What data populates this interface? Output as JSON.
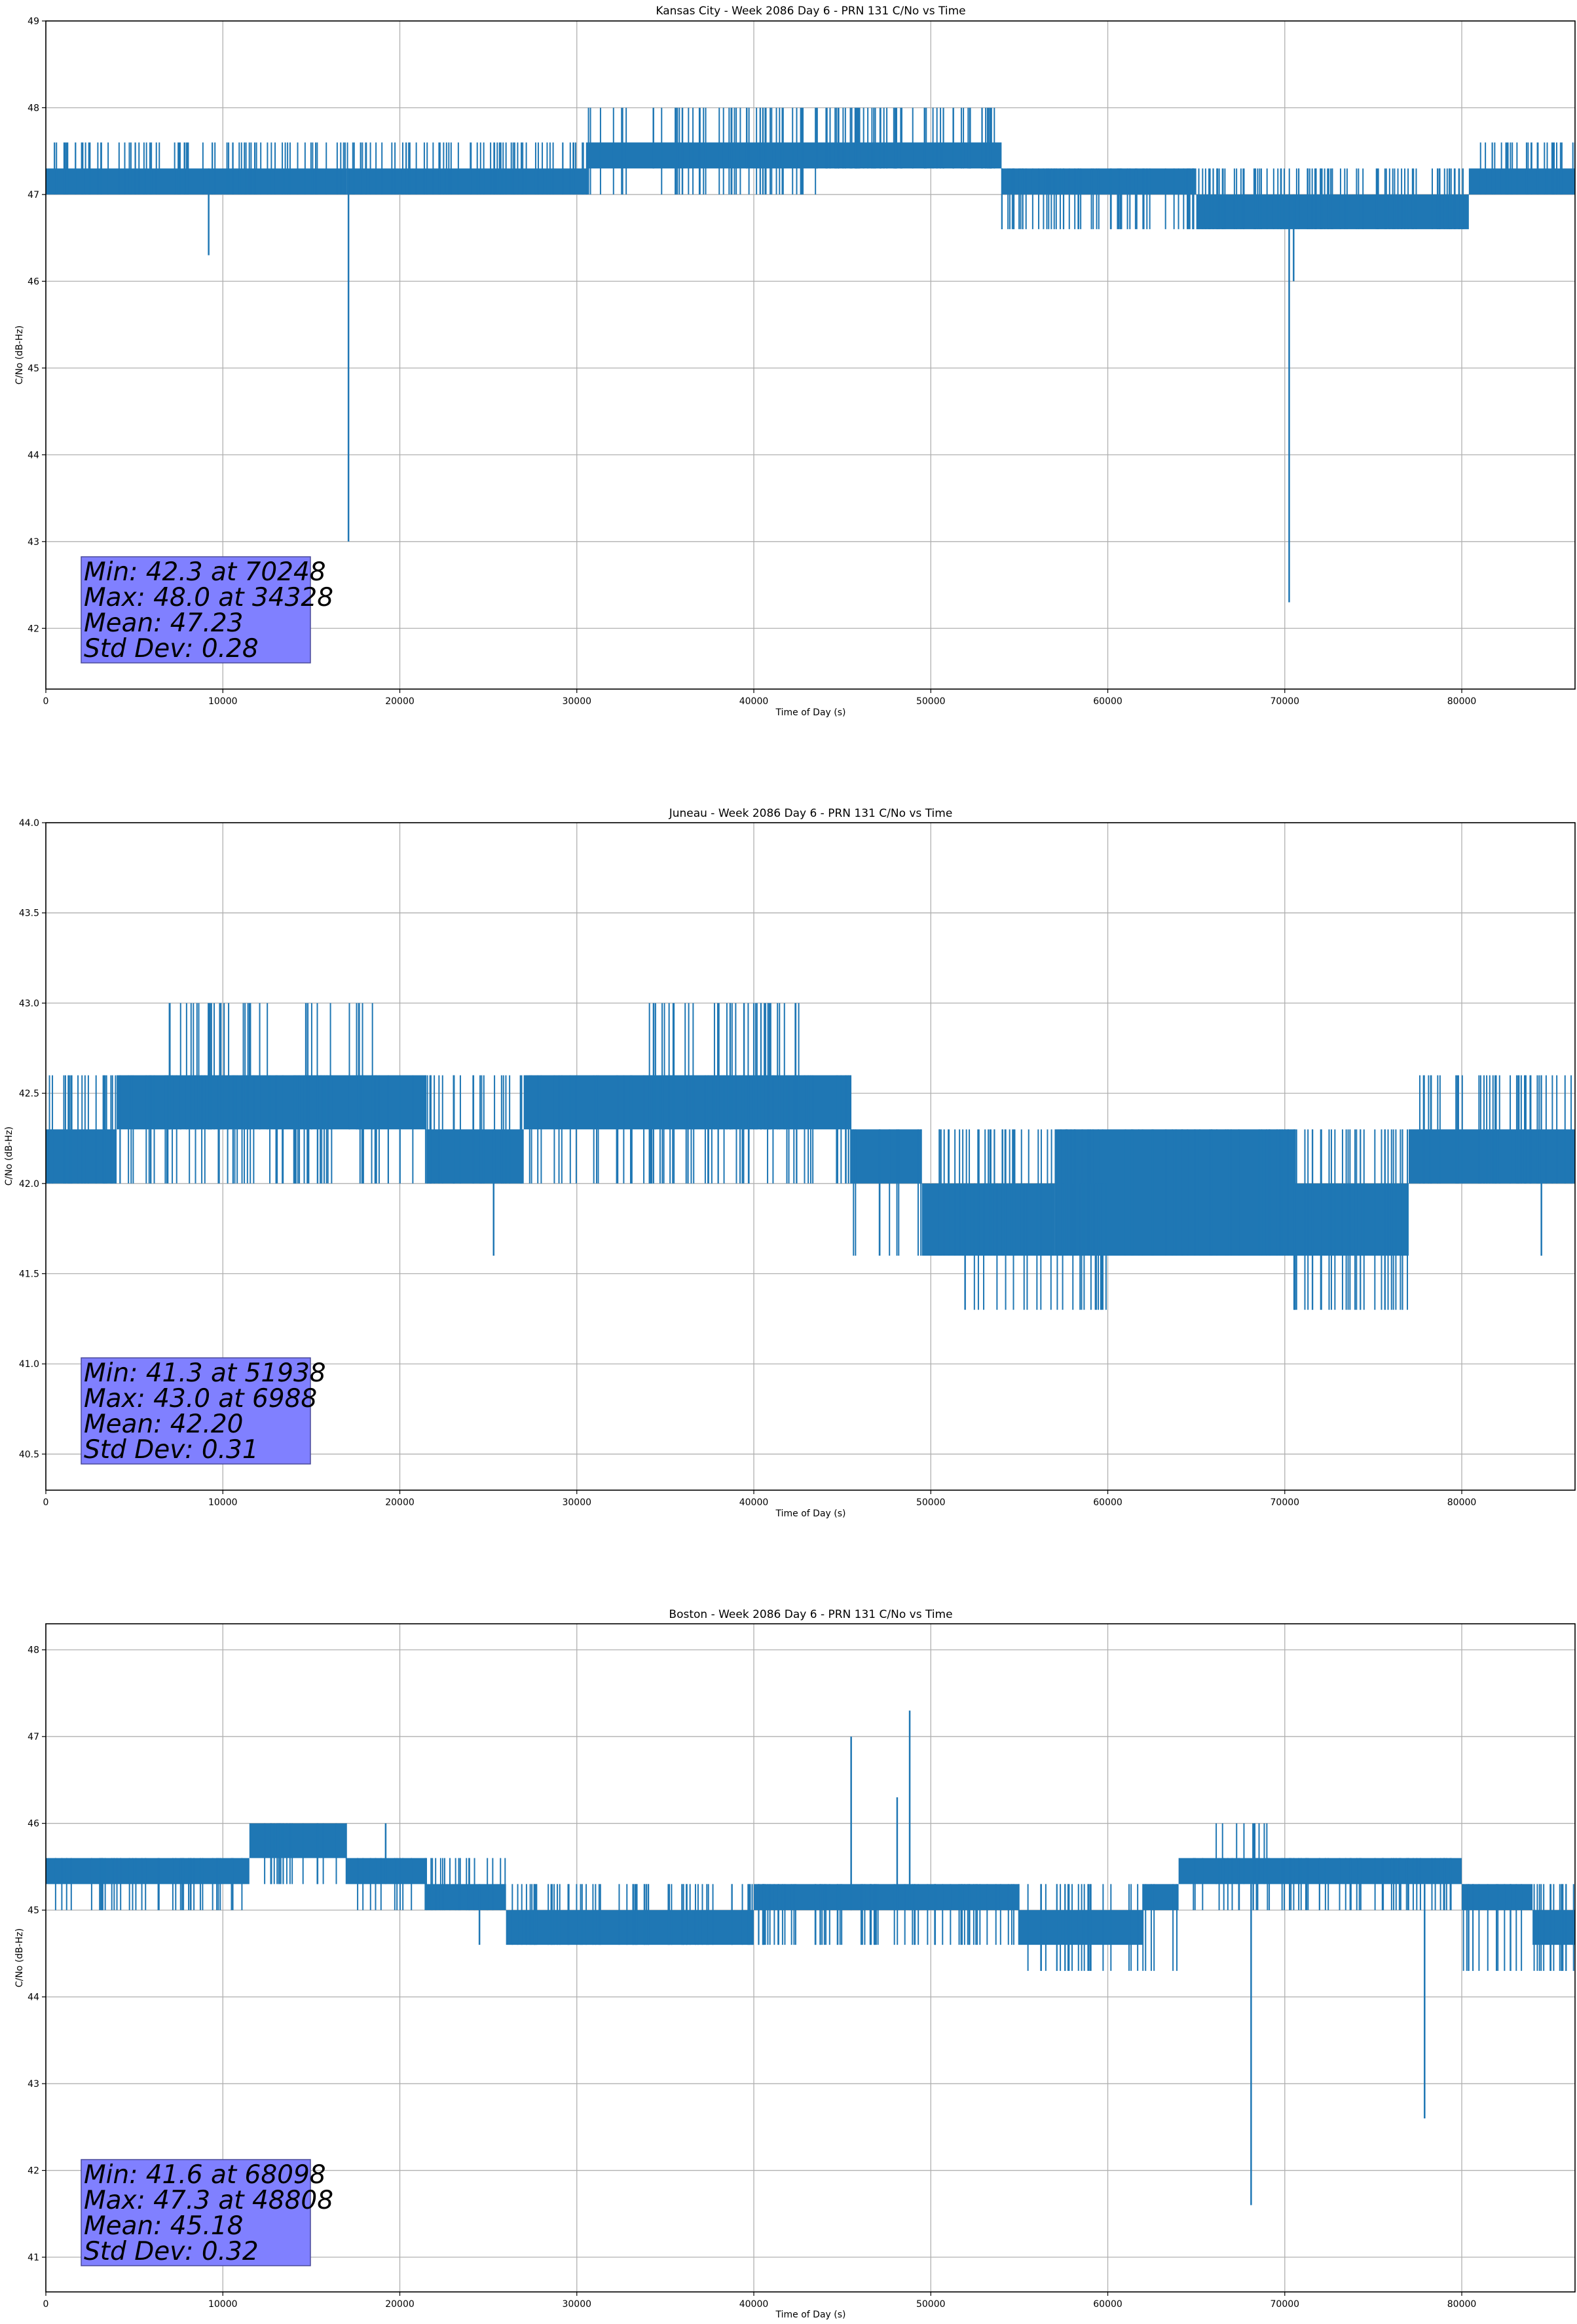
{
  "chart_data": [
    {
      "type": "line",
      "title": "Kansas City - Week 2086 Day 6 - PRN 131 C/No vs Time",
      "xlabel": "Time of Day (s)",
      "ylabel": "C/No (dB-Hz)",
      "xlim": [
        0,
        86400
      ],
      "ylim": [
        41.3,
        49.0
      ],
      "xticks": [
        0,
        10000,
        20000,
        30000,
        40000,
        50000,
        60000,
        70000,
        80000
      ],
      "yticks": [
        42,
        43,
        44,
        45,
        46,
        47,
        48,
        49
      ],
      "grid": true,
      "line_color": "#1f77b4",
      "stats_box_color": "#8080ff",
      "stats": [
        "Min: 42.3 at 70248",
        "Max: 48.0 at 34328",
        "Mean: 47.23",
        "Std Dev: 0.28"
      ],
      "bands": [
        {
          "x": [
            0,
            17000
          ],
          "low": 47.0,
          "high": 47.3
        },
        {
          "x": [
            17000,
            30600
          ],
          "low": 47.0,
          "high": 47.3
        },
        {
          "x": [
            30600,
            43500
          ],
          "low": 47.3,
          "high": 47.6
        },
        {
          "x": [
            43500,
            54000
          ],
          "low": 47.3,
          "high": 47.6
        },
        {
          "x": [
            54000,
            65000
          ],
          "low": 47.0,
          "high": 47.3
        },
        {
          "x": [
            65000,
            80400
          ],
          "low": 46.6,
          "high": 47.0
        },
        {
          "x": [
            80400,
            86400
          ],
          "low": 47.0,
          "high": 47.3
        }
      ],
      "noise": [
        {
          "x": [
            0,
            17000
          ],
          "low": 47.0,
          "high": 47.6,
          "count": 80
        },
        {
          "x": [
            17000,
            30600
          ],
          "low": 47.0,
          "high": 47.6,
          "count": 70
        },
        {
          "x": [
            30600,
            43500
          ],
          "low": 47.0,
          "high": 48.0,
          "count": 50
        },
        {
          "x": [
            43500,
            54000
          ],
          "low": 47.3,
          "high": 48.0,
          "count": 60
        },
        {
          "x": [
            54000,
            65000
          ],
          "low": 46.6,
          "high": 47.3,
          "count": 60
        },
        {
          "x": [
            65000,
            80400
          ],
          "low": 46.6,
          "high": 47.3,
          "count": 90
        },
        {
          "x": [
            80400,
            86400
          ],
          "low": 47.0,
          "high": 47.6,
          "count": 30
        }
      ],
      "spikes": [
        {
          "x": 9200,
          "low": 46.3,
          "high": 47.3
        },
        {
          "x": 17100,
          "low": 43.0,
          "high": 47.3
        },
        {
          "x": 70248,
          "low": 42.3,
          "high": 47.0
        },
        {
          "x": 70500,
          "low": 46.0,
          "high": 47.0
        },
        {
          "x": 34328,
          "low": 47.3,
          "high": 48.0
        },
        {
          "x": 39600,
          "low": 47.3,
          "high": 48.0
        }
      ]
    },
    {
      "type": "line",
      "title": "Juneau - Week 2086 Day 6 - PRN 131 C/No vs Time",
      "xlabel": "Time of Day (s)",
      "ylabel": "C/No (dB-Hz)",
      "xlim": [
        0,
        86400
      ],
      "ylim": [
        40.3,
        44.0
      ],
      "xticks": [
        0,
        10000,
        20000,
        30000,
        40000,
        50000,
        60000,
        70000,
        80000
      ],
      "yticks": [
        40.5,
        41.0,
        41.5,
        42.0,
        42.5,
        43.0,
        43.5,
        44.0
      ],
      "grid": true,
      "line_color": "#1f77b4",
      "stats_box_color": "#8080ff",
      "stats": [
        "Min: 41.3 at 51938",
        "Max: 43.0 at 6988",
        "Mean: 42.20",
        "Std Dev: 0.31"
      ],
      "bands": [
        {
          "x": [
            0,
            4000
          ],
          "low": 42.0,
          "high": 42.3
        },
        {
          "x": [
            4000,
            21500
          ],
          "low": 42.3,
          "high": 42.6
        },
        {
          "x": [
            21500,
            27000
          ],
          "low": 42.0,
          "high": 42.3
        },
        {
          "x": [
            27000,
            45500
          ],
          "low": 42.3,
          "high": 42.6
        },
        {
          "x": [
            45500,
            49500
          ],
          "low": 42.0,
          "high": 42.3
        },
        {
          "x": [
            49500,
            57000
          ],
          "low": 41.6,
          "high": 42.0
        },
        {
          "x": [
            57000,
            70500
          ],
          "low": 41.6,
          "high": 42.3
        },
        {
          "x": [
            70500,
            77000
          ],
          "low": 41.6,
          "high": 42.0
        },
        {
          "x": [
            77000,
            86400
          ],
          "low": 42.0,
          "high": 42.3
        }
      ],
      "noise": [
        {
          "x": [
            0,
            4000
          ],
          "low": 42.0,
          "high": 42.6,
          "count": 20
        },
        {
          "x": [
            4000,
            21500
          ],
          "low": 42.0,
          "high": 42.6,
          "count": 70
        },
        {
          "x": [
            6500,
            18500
          ],
          "low": 42.3,
          "high": 43.0,
          "count": 35
        },
        {
          "x": [
            21500,
            27000
          ],
          "low": 42.0,
          "high": 42.6,
          "count": 25
        },
        {
          "x": [
            27000,
            45500
          ],
          "low": 42.0,
          "high": 42.6,
          "count": 70
        },
        {
          "x": [
            34000,
            43000
          ],
          "low": 42.3,
          "high": 43.0,
          "count": 40
        },
        {
          "x": [
            45500,
            70500
          ],
          "low": 41.6,
          "high": 42.3,
          "count": 90
        },
        {
          "x": [
            52000,
            60000
          ],
          "low": 41.3,
          "high": 42.0,
          "count": 25
        },
        {
          "x": [
            70500,
            77000
          ],
          "low": 41.3,
          "high": 42.3,
          "count": 35
        },
        {
          "x": [
            77000,
            86400
          ],
          "low": 42.0,
          "high": 42.6,
          "count": 40
        }
      ],
      "spikes": [
        {
          "x": 25300,
          "low": 41.6,
          "high": 42.3
        },
        {
          "x": 51938,
          "low": 41.3,
          "high": 42.0
        },
        {
          "x": 6988,
          "low": 42.3,
          "high": 43.0
        },
        {
          "x": 84500,
          "low": 41.6,
          "high": 42.3
        }
      ]
    },
    {
      "type": "line",
      "title": "Boston - Week 2086 Day 6 - PRN 131 C/No vs Time",
      "xlabel": "Time of Day (s)",
      "ylabel": "C/No (dB-Hz)",
      "xlim": [
        0,
        86400
      ],
      "ylim": [
        40.6,
        48.3
      ],
      "xticks": [
        0,
        10000,
        20000,
        30000,
        40000,
        50000,
        60000,
        70000,
        80000
      ],
      "yticks": [
        41,
        42,
        43,
        44,
        45,
        46,
        47,
        48
      ],
      "grid": true,
      "line_color": "#1f77b4",
      "stats_box_color": "#8080ff",
      "stats": [
        "Min: 41.6 at 68098",
        "Max: 47.3 at 48808",
        "Mean: 45.18",
        "Std Dev: 0.32"
      ],
      "bands": [
        {
          "x": [
            0,
            11500
          ],
          "low": 45.3,
          "high": 45.6
        },
        {
          "x": [
            11500,
            17000
          ],
          "low": 45.6,
          "high": 46.0
        },
        {
          "x": [
            17000,
            21500
          ],
          "low": 45.3,
          "high": 45.6
        },
        {
          "x": [
            21500,
            26000
          ],
          "low": 45.0,
          "high": 45.3
        },
        {
          "x": [
            26000,
            40000
          ],
          "low": 44.6,
          "high": 45.0
        },
        {
          "x": [
            40000,
            55000
          ],
          "low": 45.0,
          "high": 45.3
        },
        {
          "x": [
            55000,
            62000
          ],
          "low": 44.6,
          "high": 45.0
        },
        {
          "x": [
            62000,
            64000
          ],
          "low": 45.0,
          "high": 45.3
        },
        {
          "x": [
            64000,
            80000
          ],
          "low": 45.3,
          "high": 45.6
        },
        {
          "x": [
            80000,
            84000
          ],
          "low": 45.0,
          "high": 45.3
        },
        {
          "x": [
            84000,
            86400
          ],
          "low": 44.6,
          "high": 45.0
        }
      ],
      "noise": [
        {
          "x": [
            0,
            11500
          ],
          "low": 45.0,
          "high": 45.6,
          "count": 40
        },
        {
          "x": [
            11500,
            17000
          ],
          "low": 45.3,
          "high": 46.0,
          "count": 20
        },
        {
          "x": [
            17000,
            26000
          ],
          "low": 45.0,
          "high": 45.6,
          "count": 30
        },
        {
          "x": [
            26000,
            40000
          ],
          "low": 44.6,
          "high": 45.3,
          "count": 60
        },
        {
          "x": [
            40000,
            55000
          ],
          "low": 44.6,
          "high": 45.3,
          "count": 70
        },
        {
          "x": [
            55000,
            64000
          ],
          "low": 44.3,
          "high": 45.3,
          "count": 30
        },
        {
          "x": [
            64000,
            80000
          ],
          "low": 45.0,
          "high": 45.6,
          "count": 60
        },
        {
          "x": [
            66000,
            69000
          ],
          "low": 45.3,
          "high": 46.0,
          "count": 10
        },
        {
          "x": [
            80000,
            86400
          ],
          "low": 44.3,
          "high": 45.3,
          "count": 30
        }
      ],
      "spikes": [
        {
          "x": 45500,
          "low": 45.0,
          "high": 47.0
        },
        {
          "x": 48100,
          "low": 45.0,
          "high": 46.3
        },
        {
          "x": 48808,
          "low": 45.0,
          "high": 47.3
        },
        {
          "x": 68098,
          "low": 41.6,
          "high": 45.3
        },
        {
          "x": 77900,
          "low": 42.6,
          "high": 45.3
        },
        {
          "x": 19200,
          "low": 45.3,
          "high": 46.0
        },
        {
          "x": 24500,
          "low": 44.6,
          "high": 45.3
        }
      ]
    }
  ]
}
